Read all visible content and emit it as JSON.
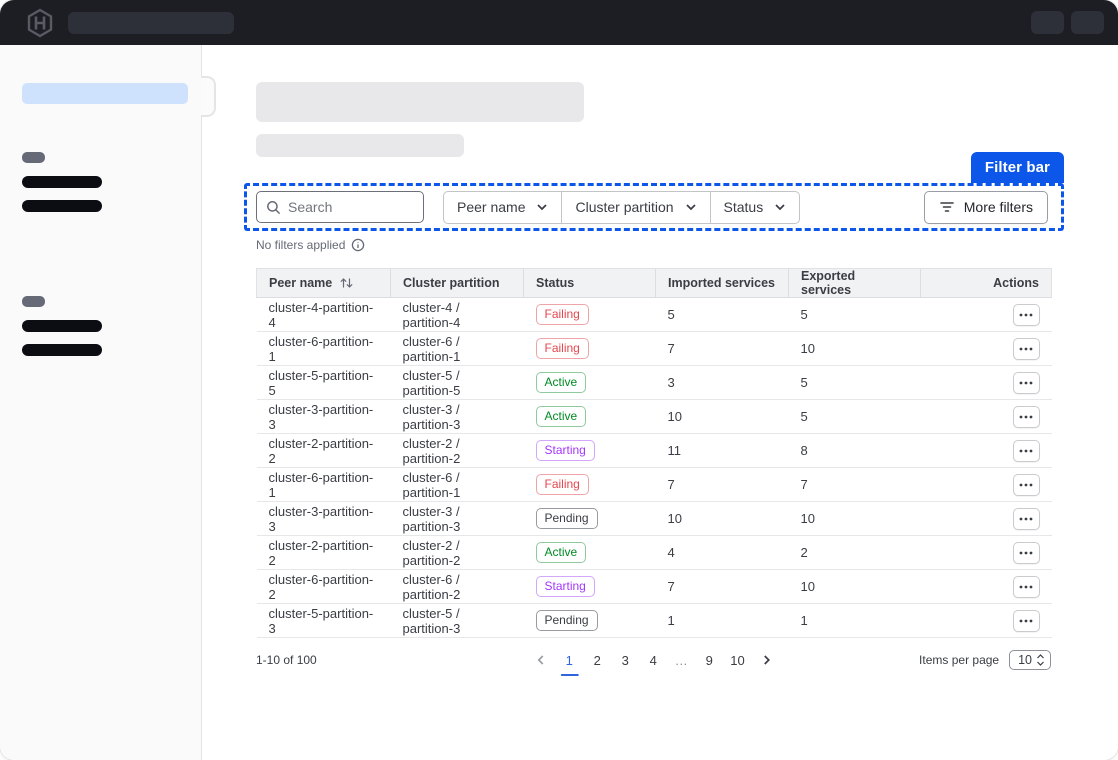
{
  "colors": {
    "accent_blue": "#0c56e9",
    "nav_bg": "#1c1e23",
    "status": {
      "Failing": {
        "text": "#e5484d",
        "border": "#efa5a8"
      },
      "Active": {
        "text": "#008a22",
        "border": "#8fca9e"
      },
      "Starting": {
        "text": "#a437fd",
        "border": "#d3a7fc"
      },
      "Pending": {
        "text": "#3b3d45",
        "border": "#989ba1"
      }
    }
  },
  "icons": {
    "logo": "hashicorp-logo",
    "search": "magnifier",
    "dropdown": "chevron-down",
    "more_filters": "filter-lines",
    "info": "info-circle",
    "sort": "arrow-up-down",
    "row_actions": "ellipsis-horizontal",
    "prev": "chevron-left",
    "next": "chevron-right",
    "items_per_page": "chevrons-up-down"
  },
  "annotation": {
    "label": "Filter bar"
  },
  "filter_bar": {
    "search_placeholder": "Search",
    "dropdowns": [
      "Peer name",
      "Cluster partition",
      "Status"
    ],
    "more_filters_label": "More filters",
    "no_filters_text": "No filters applied"
  },
  "table": {
    "columns": [
      "Peer name",
      "Cluster partition",
      "Status",
      "Imported services",
      "Exported services",
      "Actions"
    ],
    "rows": [
      {
        "peer": "cluster-4-partition-4",
        "partition": "cluster-4 / partition-4",
        "status": "Failing",
        "imported": "5",
        "exported": "5"
      },
      {
        "peer": "cluster-6-partition-1",
        "partition": "cluster-6 / partition-1",
        "status": "Failing",
        "imported": "7",
        "exported": "10"
      },
      {
        "peer": "cluster-5-partition-5",
        "partition": "cluster-5 / partition-5",
        "status": "Active",
        "imported": "3",
        "exported": "5"
      },
      {
        "peer": "cluster-3-partition-3",
        "partition": "cluster-3 / partition-3",
        "status": "Active",
        "imported": "10",
        "exported": "5"
      },
      {
        "peer": "cluster-2-partition-2",
        "partition": "cluster-2 / partition-2",
        "status": "Starting",
        "imported": "11",
        "exported": "8"
      },
      {
        "peer": "cluster-6-partition-1",
        "partition": "cluster-6 / partition-1",
        "status": "Failing",
        "imported": "7",
        "exported": "7"
      },
      {
        "peer": "cluster-3-partition-3",
        "partition": "cluster-3 / partition-3",
        "status": "Pending",
        "imported": "10",
        "exported": "10"
      },
      {
        "peer": "cluster-2-partition-2",
        "partition": "cluster-2 / partition-2",
        "status": "Active",
        "imported": "4",
        "exported": "2"
      },
      {
        "peer": "cluster-6-partition-2",
        "partition": "cluster-6 / partition-2",
        "status": "Starting",
        "imported": "7",
        "exported": "10"
      },
      {
        "peer": "cluster-5-partition-3",
        "partition": "cluster-5 / partition-3",
        "status": "Pending",
        "imported": "1",
        "exported": "1"
      }
    ]
  },
  "pagination": {
    "range_text": "1-10 of 100",
    "pages": [
      "1",
      "2",
      "3",
      "4",
      "…",
      "9",
      "10"
    ],
    "current_page": "1",
    "items_per_page_label": "Items per page",
    "items_per_page_value": "10"
  }
}
